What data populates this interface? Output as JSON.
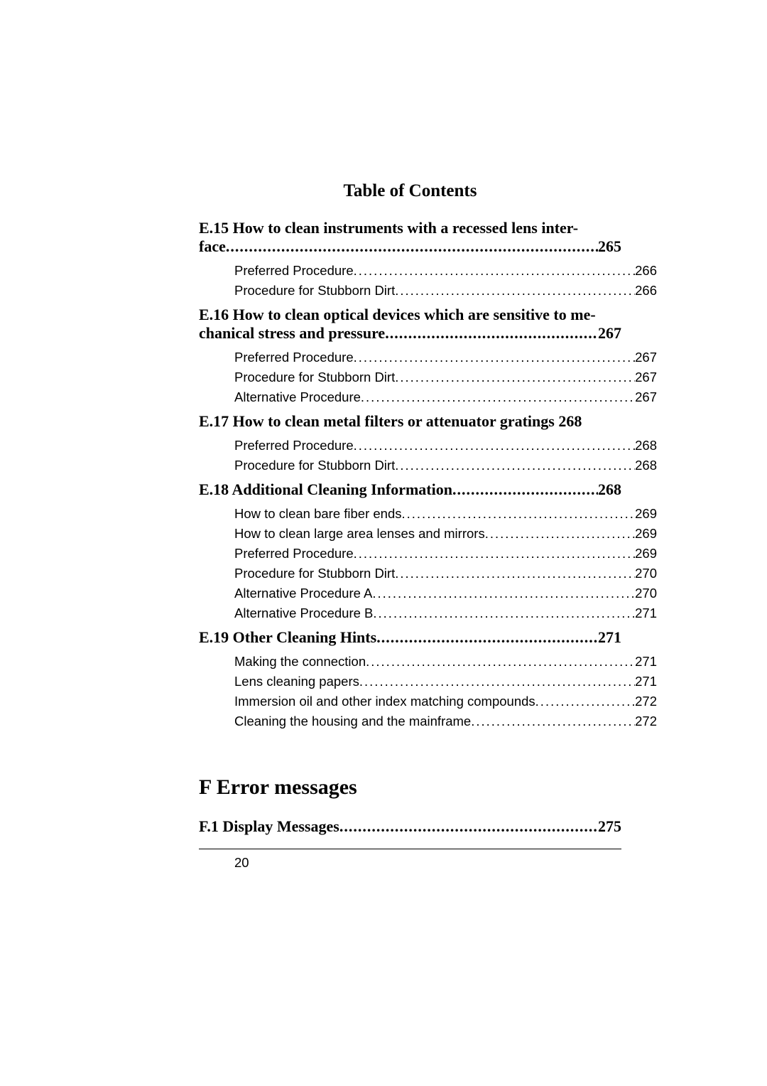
{
  "title": "Table of Contents",
  "sections": [
    {
      "heading_line1": "E.15 How to clean instruments with a recessed lens inter-",
      "heading_line2_label": "face ",
      "heading_line2_page": "265",
      "subs": [
        {
          "label": "Preferred Procedure ",
          "page": "266"
        },
        {
          "label": "Procedure for Stubborn Dirt ",
          "page": "266"
        }
      ]
    },
    {
      "heading_line1": "E.16 How to clean optical devices which are sensitive to me-",
      "heading_line2_label": "chanical stress and pressure ",
      "heading_line2_page": "267",
      "subs": [
        {
          "label": "Preferred Procedure ",
          "page": "267"
        },
        {
          "label": "Procedure for Stubborn Dirt ",
          "page": "267"
        },
        {
          "label": "Alternative Procedure ",
          "page": "267"
        }
      ]
    },
    {
      "heading_line1": "E.17 How to clean metal filters or attenuator gratings 268",
      "heading_line2_label": null,
      "heading_line2_page": null,
      "subs": [
        {
          "label": "Preferred Procedure ",
          "page": "268"
        },
        {
          "label": "Procedure for Stubborn Dirt ",
          "page": "268"
        }
      ]
    },
    {
      "heading_line1": null,
      "heading_line2_label": "E.18 Additional Cleaning Information ",
      "heading_line2_page": "268",
      "subs": [
        {
          "label": "How to clean bare fiber ends ",
          "page": "269"
        },
        {
          "label": "How to clean large area lenses and mirrors ",
          "page": "269"
        },
        {
          "label": "Preferred Procedure ",
          "page": "269"
        },
        {
          "label": "Procedure for Stubborn Dirt ",
          "page": "270"
        },
        {
          "label": "Alternative Procedure A ",
          "page": "270"
        },
        {
          "label": "Alternative Procedure B ",
          "page": "271"
        }
      ]
    },
    {
      "heading_line1": null,
      "heading_line2_label": "E.19 Other Cleaning Hints ",
      "heading_line2_page": "271",
      "subs": [
        {
          "label": "Making the connection ",
          "page": "271"
        },
        {
          "label": "Lens cleaning papers ",
          "page": "271"
        },
        {
          "label": "Immersion oil and other index matching compounds ",
          "page": "272"
        },
        {
          "label": "Cleaning the housing and the mainframe ",
          "page": "272"
        }
      ]
    }
  ],
  "appendix": {
    "title": "F Error messages",
    "entry_label": "F.1 Display Messages  ",
    "entry_page": "275"
  },
  "page_number": "20",
  "dots_heading": "...............................................................................................................",
  "dots_sub": "........................................................................................................................................."
}
